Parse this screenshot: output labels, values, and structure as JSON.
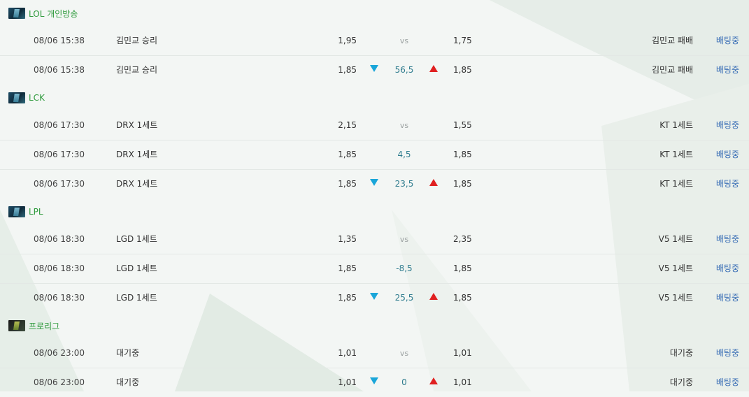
{
  "colors": {
    "league_name": "#2e9a3c",
    "status_link": "#3b6fb6",
    "down_arrow": "#1aa6d9",
    "up_arrow": "#e02020",
    "mid_value": "#2f7c8e"
  },
  "sections": [
    {
      "league": "LOL 개인방송",
      "icon": "lol-league-icon",
      "rows": [
        {
          "time": "08/06 15:38",
          "home": "김민교 승리",
          "home_odds": "1,95",
          "mid": "vs",
          "arrows": false,
          "away_odds": "1,75",
          "away": "김민교 패배",
          "status": "배팅중"
        },
        {
          "time": "08/06 15:38",
          "home": "김민교 승리",
          "home_odds": "1,85",
          "mid": "56,5",
          "arrows": true,
          "away_odds": "1,85",
          "away": "김민교 패배",
          "status": "배팅중"
        }
      ]
    },
    {
      "league": "LCK",
      "icon": "lol-league-icon",
      "rows": [
        {
          "time": "08/06 17:30",
          "home": "DRX 1세트",
          "home_odds": "2,15",
          "mid": "vs",
          "arrows": false,
          "away_odds": "1,55",
          "away": "KT 1세트",
          "status": "배팅중"
        },
        {
          "time": "08/06 17:30",
          "home": "DRX 1세트",
          "home_odds": "1,85",
          "mid": "4,5",
          "arrows": false,
          "away_odds": "1,85",
          "away": "KT 1세트",
          "status": "배팅중"
        },
        {
          "time": "08/06 17:30",
          "home": "DRX 1세트",
          "home_odds": "1,85",
          "mid": "23,5",
          "arrows": true,
          "away_odds": "1,85",
          "away": "KT 1세트",
          "status": "배팅중"
        }
      ]
    },
    {
      "league": "LPL",
      "icon": "lol-league-icon",
      "rows": [
        {
          "time": "08/06 18:30",
          "home": "LGD 1세트",
          "home_odds": "1,35",
          "mid": "vs",
          "arrows": false,
          "away_odds": "2,35",
          "away": "V5 1세트",
          "status": "배팅중"
        },
        {
          "time": "08/06 18:30",
          "home": "LGD 1세트",
          "home_odds": "1,85",
          "mid": "-8,5",
          "arrows": false,
          "away_odds": "1,85",
          "away": "V5 1세트",
          "status": "배팅중"
        },
        {
          "time": "08/06 18:30",
          "home": "LGD 1세트",
          "home_odds": "1,85",
          "mid": "25,5",
          "arrows": true,
          "away_odds": "1,85",
          "away": "V5 1세트",
          "status": "배팅중"
        }
      ]
    },
    {
      "league": "프로리그",
      "icon": "proleague-icon",
      "rows": [
        {
          "time": "08/06 23:00",
          "home": "대기중",
          "home_odds": "1,01",
          "mid": "vs",
          "arrows": false,
          "away_odds": "1,01",
          "away": "대기중",
          "status": "배팅중"
        },
        {
          "time": "08/06 23:00",
          "home": "대기중",
          "home_odds": "1,01",
          "mid": "0",
          "arrows": true,
          "away_odds": "1,01",
          "away": "대기중",
          "status": "배팅중"
        }
      ]
    }
  ]
}
